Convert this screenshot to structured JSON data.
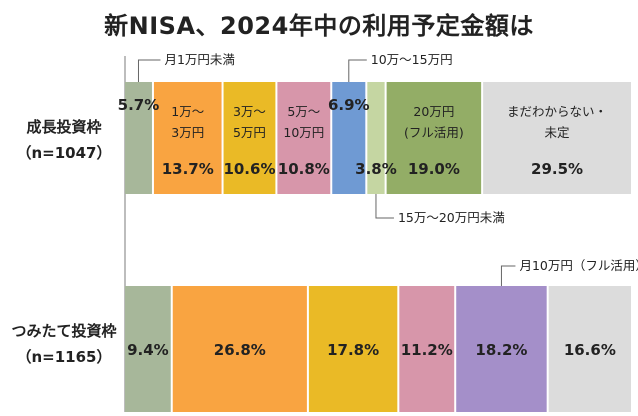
{
  "chart_data": {
    "type": "bar",
    "stacked": true,
    "orientation": "horizontal",
    "title": "新NISA、2024年中の利用予定金額は",
    "categories": [
      "成長投資枠",
      "つみたて投資枠"
    ],
    "category_notes": [
      "（n=1047）",
      "（n=1165）"
    ],
    "rows": [
      {
        "name": "成長投資枠",
        "n": "（n=1047）",
        "segments": [
          {
            "value": 5.7,
            "pct": "5.7%",
            "color": "#a7b79a",
            "label": [],
            "callout": "月1万円未満"
          },
          {
            "value": 13.7,
            "pct": "13.7%",
            "color": "#f9a441",
            "label": [
              "1万～",
              "3万円"
            ],
            "callout": ""
          },
          {
            "value": 10.6,
            "pct": "10.6%",
            "color": "#eaba26",
            "label": [
              "3万～",
              "5万円"
            ],
            "callout": ""
          },
          {
            "value": 10.8,
            "pct": "10.8%",
            "color": "#d796aa",
            "label": [
              "5万～",
              "10万円"
            ],
            "callout": ""
          },
          {
            "value": 6.9,
            "pct": "6.9%",
            "color": "#6f9ad3",
            "label": [],
            "callout": "10万～15万円"
          },
          {
            "value": 3.8,
            "pct": "3.8%",
            "color": "#c5d6a2",
            "label": [],
            "callout": "15万～20万円未満"
          },
          {
            "value": 19.0,
            "pct": "19.0%",
            "color": "#93ad66",
            "label": [
              "20万円",
              "(フル活用)"
            ],
            "callout": ""
          },
          {
            "value": 29.5,
            "pct": "29.5%",
            "color": "#dcdcdc",
            "label": [
              "まだわからない・",
              "未定"
            ],
            "callout": ""
          }
        ]
      },
      {
        "name": "つみたて投資枠",
        "n": "（n=1165）",
        "segments": [
          {
            "value": 9.4,
            "pct": "9.4%",
            "color": "#a7b79a",
            "label": [],
            "callout": ""
          },
          {
            "value": 26.8,
            "pct": "26.8%",
            "color": "#f9a441",
            "label": [],
            "callout": ""
          },
          {
            "value": 17.8,
            "pct": "17.8%",
            "color": "#eaba26",
            "label": [],
            "callout": ""
          },
          {
            "value": 11.2,
            "pct": "11.2%",
            "color": "#d796aa",
            "label": [],
            "callout": ""
          },
          {
            "value": 18.2,
            "pct": "18.2%",
            "color": "#a48fc9",
            "label": [],
            "callout": "月10万円（フル活用）"
          },
          {
            "value": 16.6,
            "pct": "16.6%",
            "color": "#dcdcdc",
            "label": [],
            "callout": ""
          }
        ]
      }
    ]
  }
}
